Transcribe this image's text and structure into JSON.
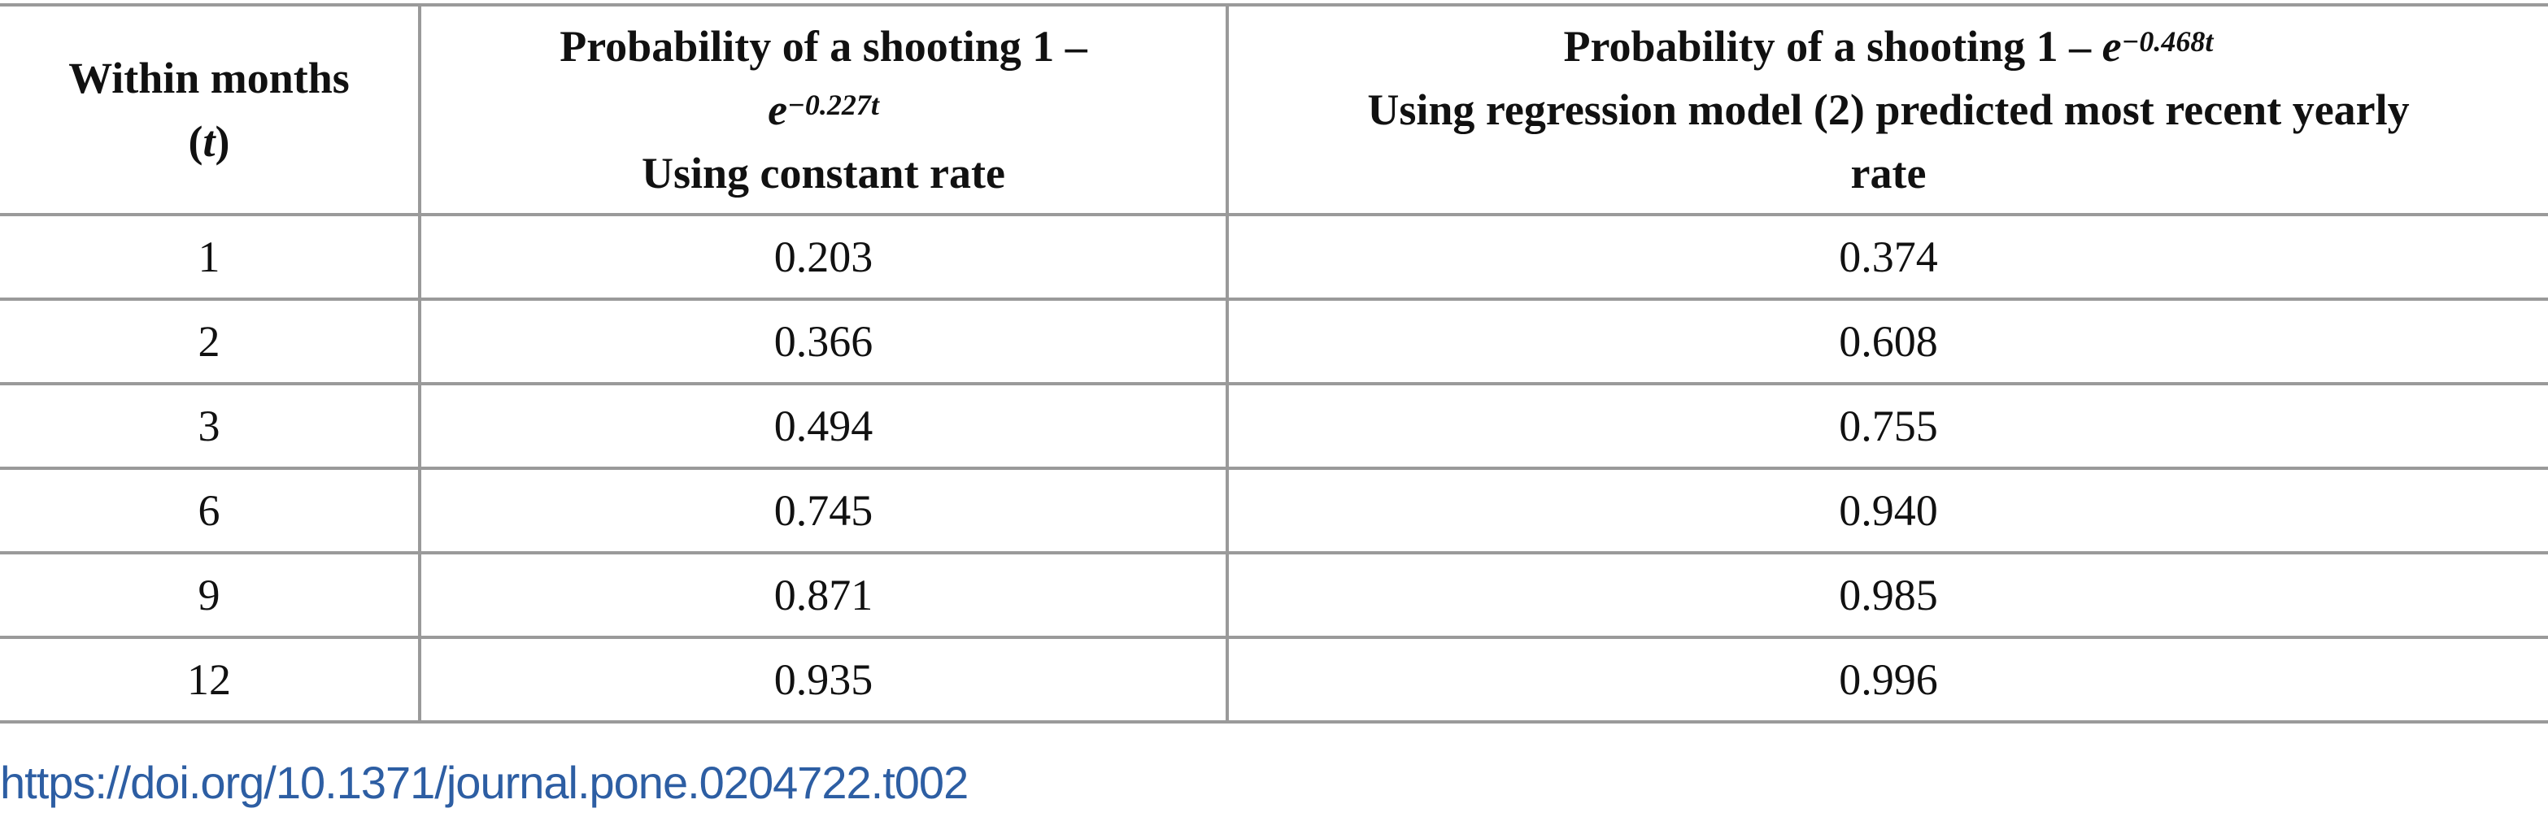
{
  "table": {
    "headers": {
      "col1": {
        "line1": "Within months",
        "line2_open": "(",
        "line2_var": "t",
        "line2_close": ")"
      },
      "col2": {
        "line1": "Probability of a shooting 1 –",
        "line2_base": "e",
        "line2_exp": "−0.227t",
        "line3": "Using constant rate"
      },
      "col3": {
        "line1_text": "Probability of a shooting 1 – ",
        "line1_base": "e",
        "line1_exp": "−0.468t",
        "line2": "Using regression model (2) predicted most recent yearly",
        "line3": "rate"
      }
    },
    "rows": [
      {
        "t": "1",
        "constant": "0.203",
        "regression": "0.374"
      },
      {
        "t": "2",
        "constant": "0.366",
        "regression": "0.608"
      },
      {
        "t": "3",
        "constant": "0.494",
        "regression": "0.755"
      },
      {
        "t": "6",
        "constant": "0.745",
        "regression": "0.940"
      },
      {
        "t": "9",
        "constant": "0.871",
        "regression": "0.985"
      },
      {
        "t": "12",
        "constant": "0.935",
        "regression": "0.996"
      }
    ]
  },
  "doi_link": "https://doi.org/10.1371/journal.pone.0204722.t002"
}
